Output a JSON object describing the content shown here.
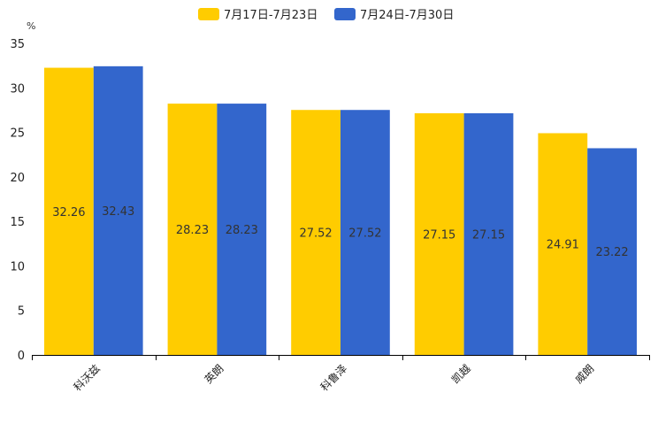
{
  "chart_data": {
    "type": "bar",
    "title": "",
    "ylabel": "%",
    "xlabel": "",
    "ylim": [
      0,
      35
    ],
    "yticks": [
      0,
      5,
      10,
      15,
      20,
      25,
      30,
      35
    ],
    "categories": [
      "科沃兹",
      "英朗",
      "科鲁泽",
      "凯越",
      "威朗"
    ],
    "legend_position": "top",
    "series": [
      {
        "name": "7月17日-7月23日",
        "color": "#FFCC00",
        "values": [
          32.26,
          28.23,
          27.52,
          27.15,
          24.91
        ]
      },
      {
        "name": "7月24日-7月30日",
        "color": "#3366CC",
        "values": [
          32.43,
          28.23,
          27.52,
          27.15,
          23.22
        ]
      }
    ]
  }
}
